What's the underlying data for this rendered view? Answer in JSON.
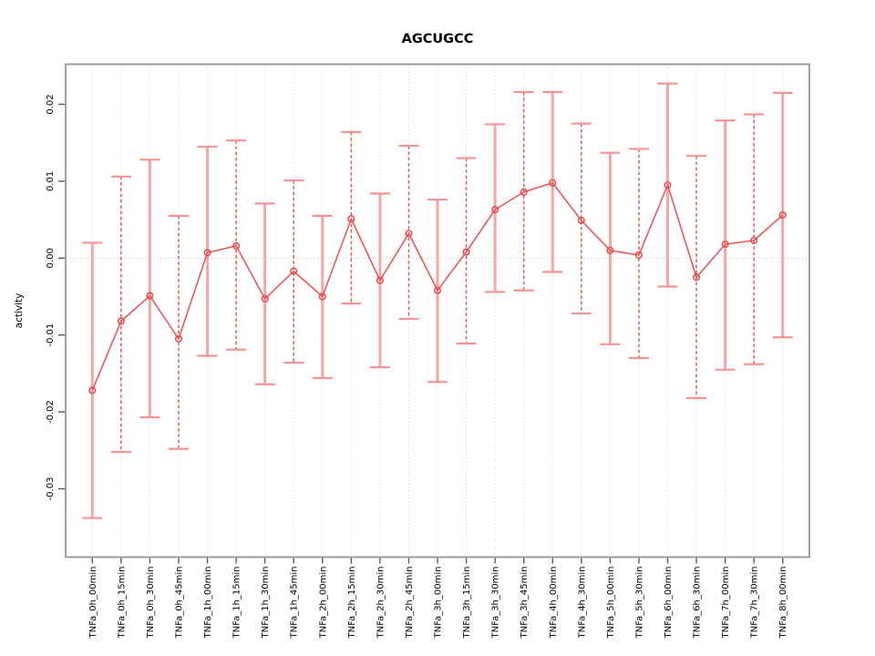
{
  "chart_data": {
    "type": "scatter",
    "title": "AGCUGCC",
    "xlabel": "",
    "ylabel": "activity",
    "legend": "none",
    "grid": "vertical dotted gridline per category, dotted horizontal line at y=0",
    "ylim": [
      -0.039,
      0.0252
    ],
    "y_ticks": {
      "values": [
        0.02,
        0.01,
        0,
        -0.01,
        -0.02,
        -0.03
      ],
      "labels": [
        "0.02",
        "0.01",
        "0.00",
        "-0.01",
        "-0.02",
        "-0.03"
      ]
    },
    "categories": [
      "TNFa_0h_00min",
      "TNFa_0h_15min",
      "TNFa_0h_30min",
      "TNFa_0h_45min",
      "TNFa_1h_00min",
      "TNFa_1h_15min",
      "TNFa_1h_30min",
      "TNFa_1h_45min",
      "TNFa_2h_00min",
      "TNFa_2h_15min",
      "TNFa_2h_30min",
      "TNFa_2h_45min",
      "TNFa_3h_00min",
      "TNFa_3h_15min",
      "TNFa_3h_30min",
      "TNFa_3h_45min",
      "TNFa_4h_00min",
      "TNFa_4h_30min",
      "TNFa_5h_00min",
      "TNFa_5h_30min",
      "TNFa_6h_00min",
      "TNFa_6h_30min",
      "TNFa_7h_00min",
      "TNFa_7h_30min",
      "TNFa_8h_00min"
    ],
    "series": [
      {
        "name": "activity",
        "values": [
          -0.0172,
          -0.0082,
          -0.0049,
          -0.0105,
          0.0007,
          0.0016,
          -0.0053,
          -0.0017,
          -0.005,
          0.0051,
          -0.0029,
          0.0032,
          -0.0042,
          0.0008,
          0.0063,
          0.0086,
          0.0098,
          0.0049,
          0.001,
          0.0004,
          0.0095,
          -0.0025,
          0.0018,
          0.0023,
          0.0056
        ],
        "err_high": [
          0.002,
          0.0106,
          0.0128,
          0.0055,
          0.0145,
          0.0153,
          0.0071,
          0.0101,
          0.0055,
          0.0164,
          0.0084,
          0.0146,
          0.0076,
          0.013,
          0.0174,
          0.0216,
          0.0216,
          0.0175,
          0.0137,
          0.0142,
          0.0227,
          0.0133,
          0.0179,
          0.0187,
          0.0215
        ],
        "err_low": [
          -0.0338,
          -0.0252,
          -0.0207,
          -0.0248,
          -0.0127,
          -0.0119,
          -0.0164,
          -0.0136,
          -0.0156,
          -0.0059,
          -0.0142,
          -0.0079,
          -0.0161,
          -0.0111,
          -0.0044,
          -0.0042,
          -0.0018,
          -0.0072,
          -0.0112,
          -0.013,
          -0.0037,
          -0.0182,
          -0.0145,
          -0.0138,
          -0.0103
        ]
      }
    ],
    "error_bar_styles": [
      "solid",
      "dashed",
      "solid",
      "dashed",
      "solid",
      "dashed",
      "solid",
      "dashed",
      "solid",
      "dashed",
      "solid",
      "dashed",
      "solid",
      "dashed",
      "solid",
      "dashed",
      "solid",
      "dashed",
      "solid",
      "dashed",
      "solid",
      "dashed",
      "solid",
      "dashed",
      "solid"
    ],
    "colors": {
      "point": "#e84b4b",
      "line": "#ee5757",
      "bar_solid": "#f7a6a6",
      "bar_dashed": "#e45858",
      "cap": "#f59494",
      "grid": "#dcdcdc",
      "zero_line": "#d2d2d2",
      "frame": "#959595",
      "tick": "#5a5a5a",
      "text": "#000000"
    }
  }
}
